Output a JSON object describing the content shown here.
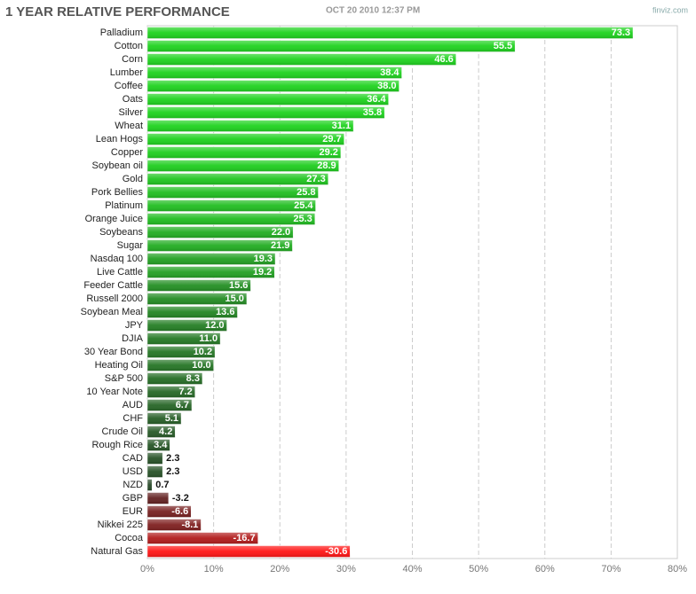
{
  "chart_data": {
    "type": "bar",
    "orientation": "horizontal",
    "title": "1 YEAR RELATIVE PERFORMANCE",
    "subtitle": "OCT 20 2010 12:37 PM",
    "source": "finviz.com",
    "categories": [
      "Palladium",
      "Cotton",
      "Corn",
      "Lumber",
      "Coffee",
      "Oats",
      "Silver",
      "Wheat",
      "Lean Hogs",
      "Copper",
      "Soybean oil",
      "Gold",
      "Pork Bellies",
      "Platinum",
      "Orange Juice",
      "Soybeans",
      "Sugar",
      "Nasdaq 100",
      "Live Cattle",
      "Feeder Cattle",
      "Russell 2000",
      "Soybean Meal",
      "JPY",
      "DJIA",
      "30 Year Bond",
      "Heating Oil",
      "S&P 500",
      "10 Year Note",
      "AUD",
      "CHF",
      "Crude Oil",
      "Rough Rice",
      "CAD",
      "USD",
      "NZD",
      "GBP",
      "EUR",
      "Nikkei 225",
      "Cocoa",
      "Natural Gas"
    ],
    "values": [
      73.3,
      55.5,
      46.6,
      38.4,
      38.0,
      36.4,
      35.8,
      31.1,
      29.7,
      29.2,
      28.9,
      27.3,
      25.8,
      25.4,
      25.3,
      22.0,
      21.9,
      19.3,
      19.2,
      15.6,
      15.0,
      13.6,
      12.0,
      11.0,
      10.2,
      10.0,
      8.3,
      7.2,
      6.7,
      5.1,
      4.2,
      3.4,
      2.3,
      2.3,
      0.7,
      -3.2,
      -6.6,
      -8.1,
      -16.7,
      -30.6
    ],
    "value_labels": [
      "73.3",
      "55.5",
      "46.6",
      "38.4",
      "38.0",
      "36.4",
      "35.8",
      "31.1",
      "29.7",
      "29.2",
      "28.9",
      "27.3",
      "25.8",
      "25.4",
      "25.3",
      "22.0",
      "21.9",
      "19.3",
      "19.2",
      "15.6",
      "15.0",
      "13.6",
      "12.0",
      "11.0",
      "10.2",
      "10.0",
      "8.3",
      "7.2",
      "6.7",
      "5.1",
      "4.2",
      "3.4",
      "2.3",
      "2.3",
      "0.7",
      "-3.2",
      "-6.6",
      "-8.1",
      "-16.7",
      "-30.6"
    ],
    "xlim": [
      0,
      80
    ],
    "xticks": [
      {
        "value": 0,
        "label": "0%"
      },
      {
        "value": 10,
        "label": "10%"
      },
      {
        "value": 20,
        "label": "20%"
      },
      {
        "value": 30,
        "label": "30%"
      },
      {
        "value": 40,
        "label": "40%"
      },
      {
        "value": 50,
        "label": "50%"
      },
      {
        "value": 60,
        "label": "60%"
      },
      {
        "value": 70,
        "label": "70%"
      },
      {
        "value": 80,
        "label": "80%"
      }
    ],
    "grid": true
  }
}
